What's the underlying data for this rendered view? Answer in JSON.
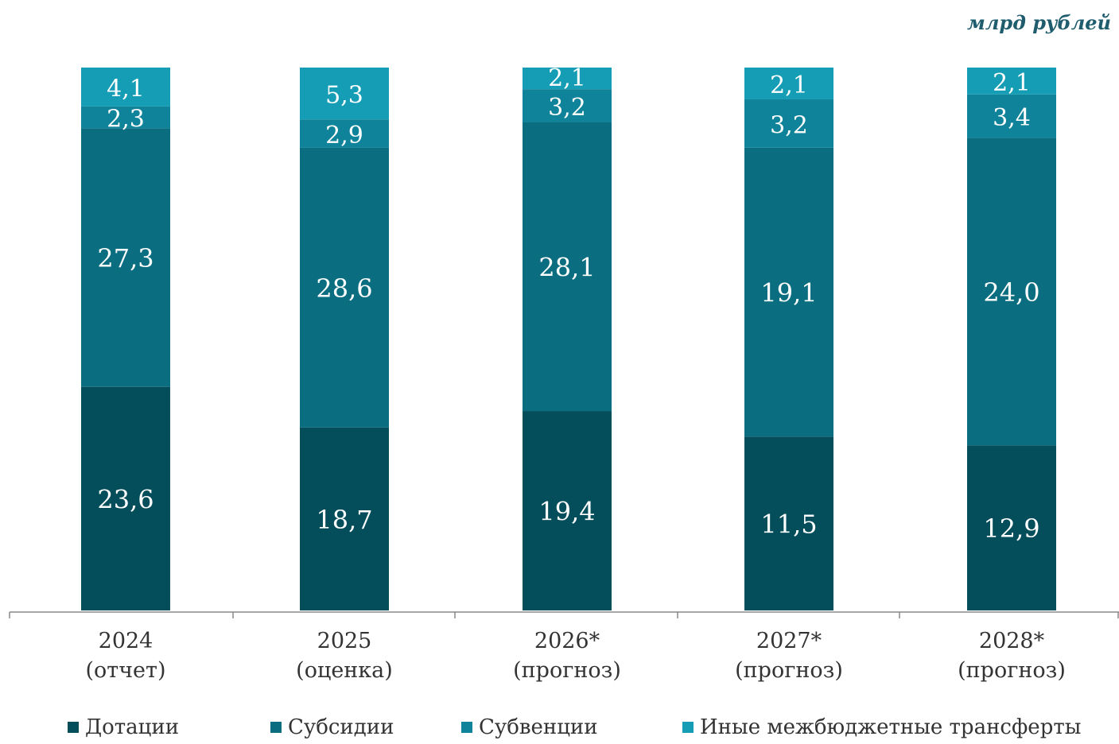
{
  "unit_label": "млрд рублей",
  "colors": {
    "Дотации": "#044d5b",
    "Субсидии": "#0b6d80",
    "Субвенции": "#0f8399",
    "Иные межбюджетные трансферты": "#159db5",
    "axis": "#888888",
    "value_text": "#ffffff",
    "tick_text": "#333333"
  },
  "chart_data": {
    "type": "bar",
    "stacked": true,
    "categories": [
      "2024",
      "2025",
      "2026*",
      "2027*",
      "2028*"
    ],
    "category_notes": [
      "(отчет)",
      "(оценка)",
      "(прогноз)",
      "(прогноз)",
      "(прогноз)"
    ],
    "series": [
      {
        "name": "Дотации",
        "values": [
          23.6,
          18.7,
          19.4,
          11.5,
          12.9
        ],
        "labels": [
          "23,6",
          "18,7",
          "19,4",
          "11,5",
          "12,9"
        ]
      },
      {
        "name": "Субсидии",
        "values": [
          27.3,
          28.6,
          28.1,
          19.1,
          24.0
        ],
        "labels": [
          "27,3",
          "28,6",
          "28,1",
          "19,1",
          "24,0"
        ]
      },
      {
        "name": "Субвенции",
        "values": [
          2.3,
          2.9,
          3.2,
          3.2,
          3.4
        ],
        "labels": [
          "2,3",
          "2,9",
          "3,2",
          "3,2",
          "3,4"
        ]
      },
      {
        "name": "Иные межбюджетные трансферты",
        "values": [
          4.1,
          5.3,
          2.1,
          2.1,
          2.1
        ],
        "labels": [
          "4,1",
          "5,3",
          "2,1",
          "2,1",
          "2,1"
        ]
      }
    ],
    "normalized_to_full_height": true,
    "legend_position": "bottom",
    "grid": false
  }
}
